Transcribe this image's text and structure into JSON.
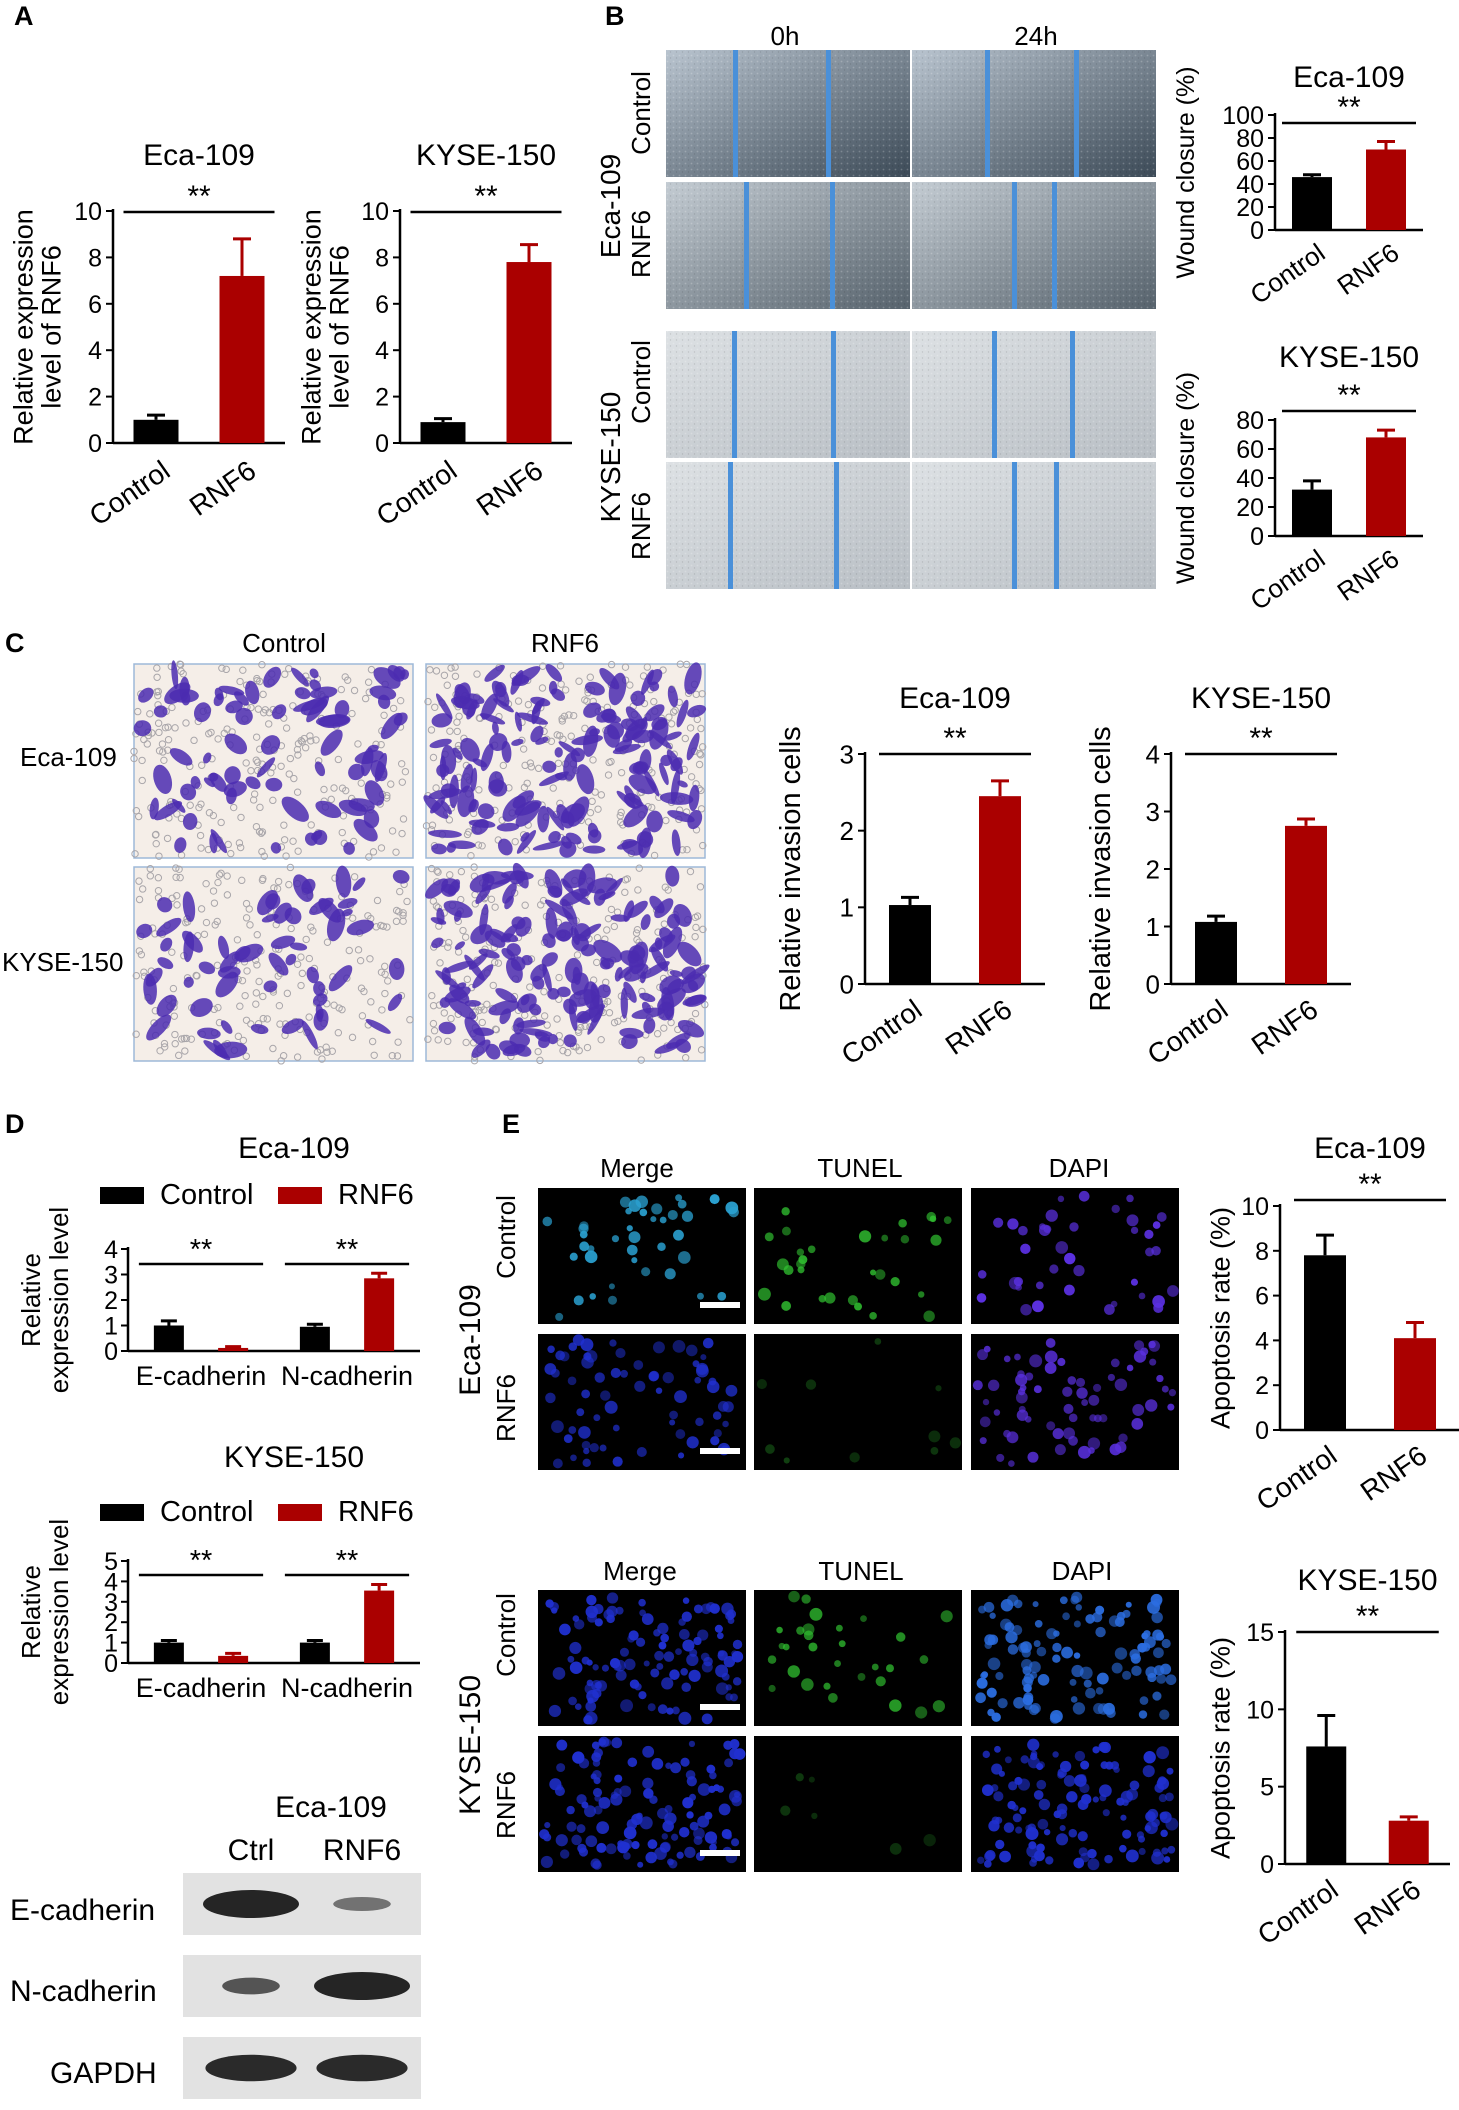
{
  "panels": {
    "A": {
      "letter": "A",
      "charts": [
        {
          "type": "bar",
          "title": "Eca-109",
          "ylabel": "Relative expression level of RNF6",
          "ylabel_lines": [
            "Relative expression",
            "level of RNF6"
          ],
          "categories": [
            "Control",
            "RNF6"
          ],
          "values": [
            1.0,
            7.2
          ],
          "errors": [
            0.2,
            1.6
          ],
          "ylim": [
            0,
            10
          ],
          "yticks": [
            0,
            2,
            4,
            6,
            8,
            10
          ],
          "significance": "**",
          "colors": [
            "#000000",
            "#aa0000"
          ]
        },
        {
          "type": "bar",
          "title": "KYSE-150",
          "ylabel": "Relative expression level of RNF6",
          "ylabel_lines": [
            "Relative expression",
            "level of RNF6"
          ],
          "categories": [
            "Control",
            "RNF6"
          ],
          "values": [
            0.9,
            7.8
          ],
          "errors": [
            0.15,
            0.75
          ],
          "ylim": [
            0,
            10
          ],
          "yticks": [
            0,
            2,
            4,
            6,
            8,
            10
          ],
          "significance": "**",
          "colors": [
            "#000000",
            "#aa0000"
          ]
        }
      ]
    },
    "B": {
      "letter": "B",
      "time_labels": [
        "0h",
        "24h"
      ],
      "groups": [
        {
          "cell_line": "Eca-109",
          "rows": [
            "Control",
            "RNF6"
          ]
        },
        {
          "cell_line": "KYSE-150",
          "rows": [
            "Control",
            "RNF6"
          ]
        }
      ],
      "charts": [
        {
          "type": "bar",
          "title": "Eca-109",
          "ylabel": "Wound closure (%)",
          "categories": [
            "Control",
            "RNF6"
          ],
          "values": [
            46,
            70
          ],
          "errors": [
            2,
            7
          ],
          "ylim": [
            0,
            100
          ],
          "yticks": [
            0,
            20,
            40,
            60,
            80,
            100
          ],
          "significance": "**",
          "colors": [
            "#000000",
            "#aa0000"
          ]
        },
        {
          "type": "bar",
          "title": "KYSE-150",
          "ylabel": "Wound closure (%)",
          "categories": [
            "Control",
            "RNF6"
          ],
          "values": [
            32,
            68
          ],
          "errors": [
            6,
            5
          ],
          "ylim": [
            0,
            80
          ],
          "yticks": [
            0,
            20,
            40,
            60,
            80
          ],
          "significance": "**",
          "colors": [
            "#000000",
            "#aa0000"
          ]
        }
      ]
    },
    "C": {
      "letter": "C",
      "col_labels": [
        "Control",
        "RNF6"
      ],
      "row_labels": [
        "Eca-109",
        "KYSE-150"
      ],
      "charts": [
        {
          "type": "bar",
          "title": "Eca-109",
          "ylabel": "Relative invasion cells",
          "categories": [
            "Control",
            "RNF6"
          ],
          "values": [
            1.03,
            2.45
          ],
          "errors": [
            0.1,
            0.2
          ],
          "ylim": [
            0,
            3
          ],
          "yticks": [
            0,
            1,
            2,
            3
          ],
          "significance": "**",
          "colors": [
            "#000000",
            "#aa0000"
          ]
        },
        {
          "type": "bar",
          "title": "KYSE-150",
          "ylabel": "Relative invasion cells",
          "categories": [
            "Control",
            "RNF6"
          ],
          "values": [
            1.08,
            2.75
          ],
          "errors": [
            0.1,
            0.12
          ],
          "ylim": [
            0,
            4
          ],
          "yticks": [
            0,
            1,
            2,
            3,
            4
          ],
          "significance": "**",
          "colors": [
            "#000000",
            "#aa0000"
          ]
        }
      ]
    },
    "D": {
      "letter": "D",
      "charts": [
        {
          "type": "bar",
          "title": "Eca-109",
          "ylabel": "Relative expression level",
          "ylabel_lines": [
            "Relative",
            "expression level"
          ],
          "categories": [
            "E-cadherin",
            "N-cadherin"
          ],
          "series": [
            {
              "name": "Control",
              "values": [
                1.0,
                0.95
              ],
              "errors": [
                0.18,
                0.1
              ],
              "color": "#000000"
            },
            {
              "name": "RNF6",
              "values": [
                0.12,
                2.85
              ],
              "errors": [
                0.05,
                0.2
              ],
              "color": "#aa0000"
            }
          ],
          "ylim": [
            0,
            4
          ],
          "yticks": [
            0,
            1,
            2,
            3,
            4
          ],
          "significance": [
            "**",
            "**"
          ]
        },
        {
          "type": "bar",
          "title": "KYSE-150",
          "ylabel": "Relative expression level",
          "ylabel_lines": [
            "Relative",
            "expression level"
          ],
          "categories": [
            "E-cadherin",
            "N-cadherin"
          ],
          "series": [
            {
              "name": "Control",
              "values": [
                1.0,
                1.0
              ],
              "errors": [
                0.1,
                0.1
              ],
              "color": "#000000"
            },
            {
              "name": "RNF6",
              "values": [
                0.35,
                3.55
              ],
              "errors": [
                0.12,
                0.3
              ],
              "color": "#aa0000"
            }
          ],
          "ylim": [
            0,
            5
          ],
          "yticks": [
            0,
            1,
            2,
            3,
            4,
            5
          ],
          "significance": [
            "**",
            "**"
          ]
        }
      ],
      "blot": {
        "title": "Eca-109",
        "columns": [
          "Ctrl",
          "RNF6"
        ],
        "rows": [
          "E-cadherin",
          "N-cadherin",
          "GAPDH"
        ]
      }
    },
    "E": {
      "letter": "E",
      "col_labels": [
        "Merge",
        "TUNEL",
        "DAPI"
      ],
      "groups": [
        {
          "cell_line": "Eca-109",
          "rows": [
            "Control",
            "RNF6"
          ]
        },
        {
          "cell_line": "KYSE-150",
          "rows": [
            "Control",
            "RNF6"
          ]
        }
      ],
      "charts": [
        {
          "type": "bar",
          "title": "Eca-109",
          "ylabel": "Apoptosis rate (%)",
          "categories": [
            "Control",
            "RNF6"
          ],
          "values": [
            7.8,
            4.1
          ],
          "errors": [
            0.9,
            0.7
          ],
          "ylim": [
            0,
            10
          ],
          "yticks": [
            0,
            2,
            4,
            6,
            8,
            10
          ],
          "significance": "**",
          "colors": [
            "#000000",
            "#aa0000"
          ]
        },
        {
          "type": "bar",
          "title": "KYSE-150",
          "ylabel": "Apoptosis rate (%)",
          "categories": [
            "Control",
            "RNF6"
          ],
          "values": [
            7.6,
            2.8
          ],
          "errors": [
            2.0,
            0.25
          ],
          "ylim": [
            0,
            15
          ],
          "yticks": [
            0,
            5,
            10,
            15
          ],
          "significance": "**",
          "colors": [
            "#000000",
            "#aa0000"
          ]
        }
      ]
    }
  },
  "colors": {
    "control": "#000000",
    "rnf6": "#aa0000",
    "scratch_line": "#4a90d9",
    "invasion_stain": "#4b2bb0",
    "tunel_green": "#30c030",
    "dapi_blue": "#2030d0"
  }
}
